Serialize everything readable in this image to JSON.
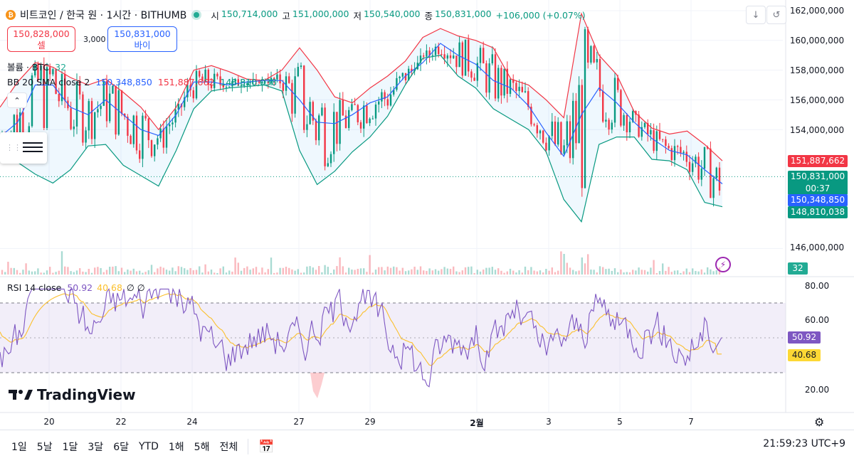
{
  "header": {
    "coin_glyph": "₿",
    "title": "비트코인 / 한국 원 · 1시간 · BITHUMB",
    "open_label": "시",
    "open": "150,714,000",
    "high_label": "고",
    "high": "151,000,000",
    "low_label": "저",
    "low": "150,540,000",
    "close_label": "종",
    "close": "150,831,000",
    "change": "+106,000 (+0.07%)"
  },
  "trade": {
    "sell_price": "150,828,000",
    "sell_label": "셀",
    "spread": "3,000",
    "buy_price": "150,831,000",
    "buy_label": "바이"
  },
  "legends": {
    "volume_name": "볼륨 · BTC",
    "volume_value": "32",
    "bb_name": "BB 20 SMA close 2",
    "bb_basis": "150,348,850",
    "bb_upper": "151,887,662",
    "bb_lower": "148,810,038",
    "rsi_name": "RSI 14 close",
    "rsi_value": "50.92",
    "rsi_ma": "40.68",
    "rsi_extra": "∅ ∅"
  },
  "price_axis": [
    "162,000,000",
    "160,000,000",
    "158,000,000",
    "156,000,000",
    "154,000,000",
    "146,000,000"
  ],
  "price_tags": {
    "upper": "151,887,662",
    "last": "150,831,000",
    "countdown": "00:37",
    "basis": "150,348,850",
    "lower": "148,810,038",
    "volume": "32",
    "rsi": "50.92",
    "rsi_ma": "40.68"
  },
  "rsi_axis": [
    "80.00",
    "60.00",
    "20.00"
  ],
  "time_axis": [
    "20",
    "22",
    "24",
    "27",
    "29",
    "2월",
    "3",
    "5",
    "7"
  ],
  "ranges": [
    "1일",
    "5날",
    "1달",
    "3달",
    "6달",
    "YTD",
    "1해",
    "5해",
    "전체"
  ],
  "clock": "21:59:23 UTC+9",
  "logo_text": "TradingView",
  "colors": {
    "up": "#089981",
    "down": "#f23645",
    "basis": "#2962ff",
    "upper": "#f23645",
    "lower": "#089981",
    "rsi": "#7e57c2",
    "rsi_ma": "#fbc02d"
  },
  "chart_data": {
    "type": "line",
    "title": "비트코인 / 한국 원 · 1시간 · BITHUMB",
    "x_ticks": [
      "20",
      "22",
      "24",
      "27",
      "29",
      "2월",
      "3",
      "5",
      "7"
    ],
    "y_range": [
      145000000,
      162500000
    ],
    "series": [
      {
        "name": "BB 20 SMA close 2 upper",
        "values": [
          155.5,
          157.2,
          158.5,
          158.2,
          157.5,
          157.0,
          157.4,
          156.5,
          155.5,
          154.0,
          155.5,
          158.0,
          158.3,
          157.9,
          157.4,
          157.3,
          158.0,
          159.5,
          158.0,
          156.2,
          155.8,
          156.8,
          157.6,
          158.6,
          160.2,
          160.8,
          160.3,
          160.0,
          159.5,
          157.4,
          157.0,
          156.0,
          154.8,
          161.8,
          159.0,
          157.7,
          155.2,
          154.1,
          153.7,
          153.9,
          153.0,
          151.9
        ]
      },
      {
        "name": "BB 20 SMA close 2 basis",
        "values": [
          153.5,
          154.5,
          157.0,
          157.0,
          155.5,
          155.0,
          156.0,
          155.0,
          154.0,
          153.6,
          155.0,
          157.2,
          157.2,
          157.0,
          157.2,
          157.3,
          157.3,
          156.0,
          154.5,
          154.4,
          155.0,
          155.8,
          156.2,
          157.6,
          158.5,
          159.8,
          159.0,
          158.4,
          157.3,
          156.8,
          155.6,
          153.8,
          152.2,
          155.0,
          156.8,
          155.8,
          154.5,
          153.4,
          152.6,
          152.3,
          151.3,
          150.35
        ]
      },
      {
        "name": "BB 20 SMA close 2 lower",
        "values": [
          152.5,
          151.8,
          151.0,
          150.4,
          151.3,
          152.9,
          153.0,
          151.6,
          150.9,
          150.2,
          152.6,
          155.4,
          156.6,
          156.8,
          156.9,
          157.0,
          156.6,
          152.6,
          150.3,
          151.2,
          152.5,
          153.5,
          154.9,
          157.0,
          158.8,
          159.0,
          157.6,
          156.8,
          155.4,
          154.7,
          154.0,
          152.5,
          149.3,
          147.8,
          153.0,
          153.5,
          153.5,
          152.0,
          151.9,
          151.3,
          149.1,
          148.81
        ]
      }
    ],
    "last_price": 150831000,
    "volume_last": 32,
    "rsi": {
      "range": [
        10,
        90
      ],
      "levels": [
        70,
        30
      ],
      "value": 50.92,
      "ma": 40.68
    }
  }
}
